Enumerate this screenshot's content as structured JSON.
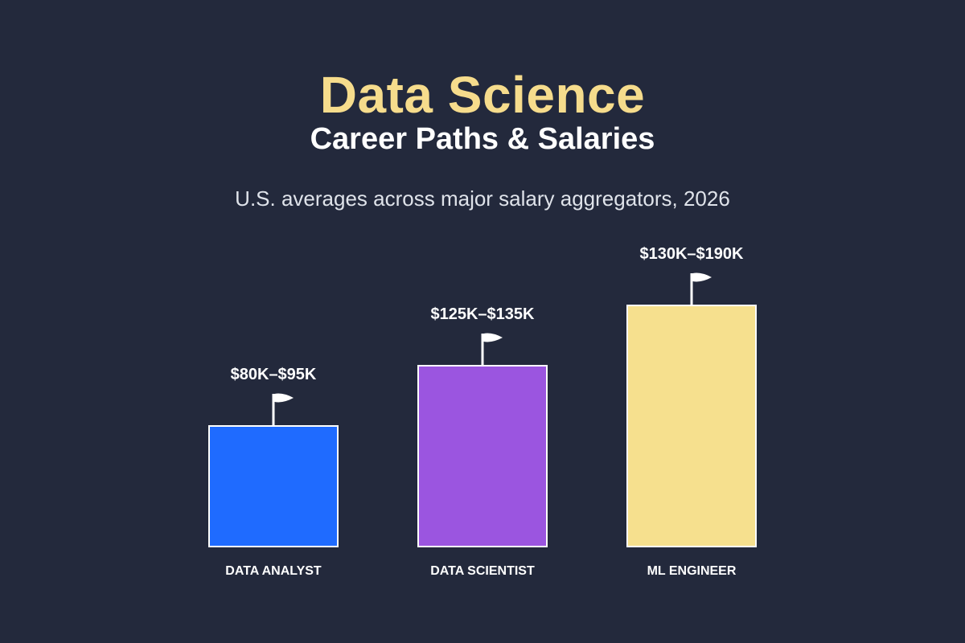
{
  "header": {
    "title": "Data Science",
    "subtitle": "Career Paths & Salaries",
    "caption": "U.S. averages across major salary aggregators, 2026"
  },
  "colors": {
    "background": "#23293c",
    "title": "#f6dc8c",
    "bar_outline": "#ffffff",
    "flag": "#ffffff"
  },
  "chart_data": {
    "type": "bar",
    "title": "Data Science",
    "subtitle": "Career Paths & Salaries",
    "categories": [
      "DATA ANALYST",
      "DATA SCIENTIST",
      "ML ENGINEER"
    ],
    "value_labels": [
      "$80K–$95K",
      "$125K–$135K",
      "$130K–$190K"
    ],
    "ranges_k": [
      [
        80,
        95
      ],
      [
        125,
        135
      ],
      [
        130,
        190
      ]
    ],
    "relative_heights": [
      0.5,
      0.75,
      1.0
    ],
    "bar_colors": [
      "#1f6bff",
      "#9b55e0",
      "#f6e08e"
    ],
    "flag_icon": "flag-icon",
    "legend": "none",
    "grid": false
  }
}
